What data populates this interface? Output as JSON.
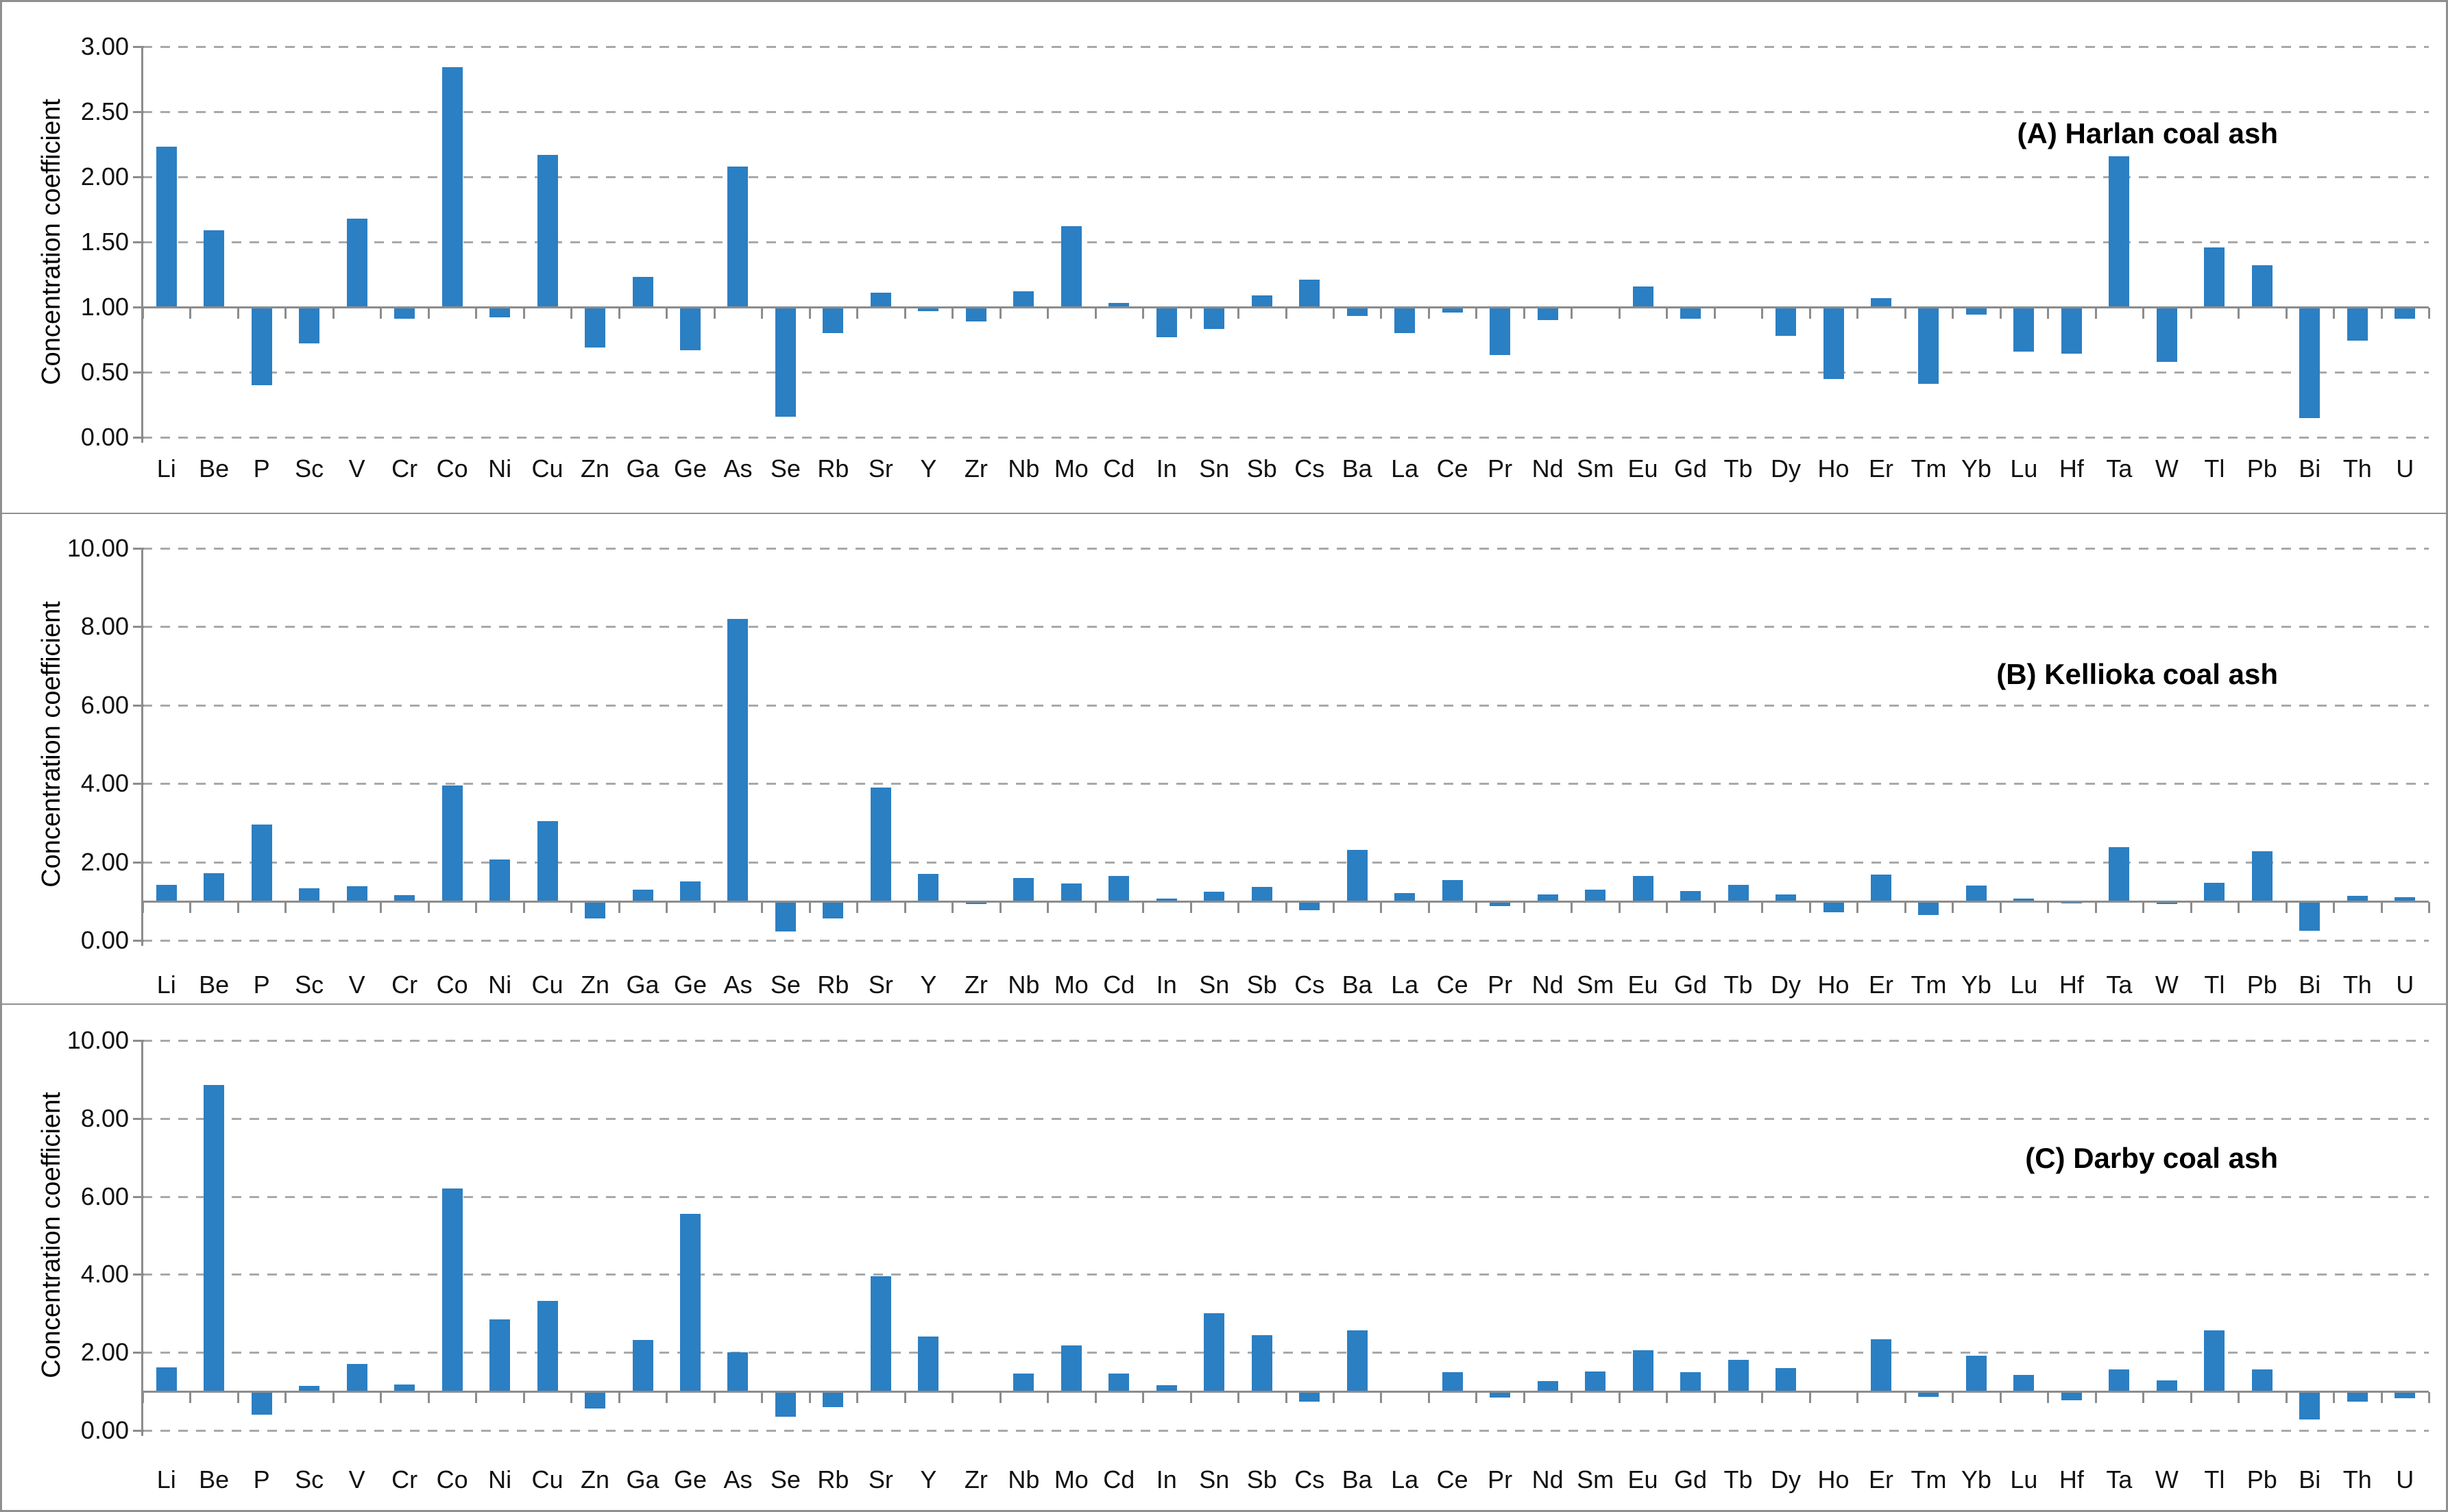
{
  "figure": {
    "bar_color": "#2b7fc3",
    "gridline_color": "#a9a9a9",
    "axis_color": "#8c8c8c",
    "background_color": "#ffffff"
  },
  "chart_data": [
    {
      "type": "bar",
      "panel": "A",
      "title": "(A) Harlan coal ash",
      "ylabel": "Concentration coefficient",
      "xlabel": "",
      "ylim": [
        0,
        3
      ],
      "ytick_step": 0.5,
      "ytick_labels": [
        "0.00",
        "0.50",
        "1.00",
        "1.50",
        "2.00",
        "2.50",
        "3.00"
      ],
      "bar_base": 1.0,
      "grid": true,
      "legend": "none",
      "categories": [
        "Li",
        "Be",
        "P",
        "Sc",
        "V",
        "Cr",
        "Co",
        "Ni",
        "Cu",
        "Zn",
        "Ga",
        "Ge",
        "As",
        "Se",
        "Rb",
        "Sr",
        "Y",
        "Zr",
        "Nb",
        "Mo",
        "Cd",
        "In",
        "Sn",
        "Sb",
        "Cs",
        "Ba",
        "La",
        "Ce",
        "Pr",
        "Nd",
        "Sm",
        "Eu",
        "Gd",
        "Tb",
        "Dy",
        "Ho",
        "Er",
        "Tm",
        "Yb",
        "Lu",
        "Hf",
        "Ta",
        "W",
        "Tl",
        "Pb",
        "Bi",
        "Th",
        "U"
      ],
      "values": [
        2.23,
        1.59,
        0.4,
        0.72,
        1.68,
        0.91,
        2.84,
        0.92,
        2.17,
        0.69,
        1.23,
        0.67,
        2.08,
        0.16,
        0.8,
        1.11,
        0.97,
        0.89,
        1.12,
        1.62,
        1.03,
        0.77,
        0.83,
        1.09,
        1.21,
        0.93,
        0.8,
        0.96,
        0.63,
        0.9,
        1.0,
        1.16,
        0.91,
        1.0,
        0.78,
        0.45,
        1.07,
        0.41,
        0.94,
        0.66,
        0.64,
        2.16,
        0.58,
        1.46,
        1.32,
        0.15,
        0.74,
        0.91
      ]
    },
    {
      "type": "bar",
      "panel": "B",
      "title": "(B) Kellioka coal ash",
      "ylabel": "Concentration coefficient",
      "xlabel": "",
      "ylim": [
        0,
        10
      ],
      "ytick_step": 2,
      "ytick_labels": [
        "0.00",
        "2.00",
        "4.00",
        "6.00",
        "8.00",
        "10.00"
      ],
      "bar_base": 1.0,
      "grid": true,
      "legend": "none",
      "categories": [
        "Li",
        "Be",
        "P",
        "Sc",
        "V",
        "Cr",
        "Co",
        "Ni",
        "Cu",
        "Zn",
        "Ga",
        "Ge",
        "As",
        "Se",
        "Rb",
        "Sr",
        "Y",
        "Zr",
        "Nb",
        "Mo",
        "Cd",
        "In",
        "Sn",
        "Sb",
        "Cs",
        "Ba",
        "La",
        "Ce",
        "Pr",
        "Nd",
        "Sm",
        "Eu",
        "Gd",
        "Tb",
        "Dy",
        "Ho",
        "Er",
        "Tm",
        "Yb",
        "Lu",
        "Hf",
        "Ta",
        "W",
        "Tl",
        "Pb",
        "Bi",
        "Th",
        "U"
      ],
      "values": [
        1.41,
        1.72,
        2.95,
        1.32,
        1.38,
        1.15,
        3.95,
        2.06,
        3.05,
        0.56,
        1.3,
        1.5,
        8.2,
        0.22,
        0.56,
        3.9,
        1.69,
        0.93,
        1.59,
        1.45,
        1.64,
        1.06,
        1.24,
        1.36,
        0.77,
        2.31,
        1.2,
        1.54,
        0.88,
        1.18,
        1.3,
        1.64,
        1.26,
        1.41,
        1.18,
        0.72,
        1.68,
        0.65,
        1.4,
        1.07,
        0.95,
        2.38,
        0.93,
        1.46,
        2.27,
        0.25,
        1.14,
        1.1
      ]
    },
    {
      "type": "bar",
      "panel": "C",
      "title": "(C) Darby coal ash",
      "ylabel": "Concentration coefficient",
      "xlabel": "",
      "ylim": [
        0,
        10
      ],
      "ytick_step": 2,
      "ytick_labels": [
        "0.00",
        "2.00",
        "4.00",
        "6.00",
        "8.00",
        "10.00"
      ],
      "bar_base": 1.0,
      "grid": true,
      "legend": "none",
      "categories": [
        "Li",
        "Be",
        "P",
        "Sc",
        "V",
        "Cr",
        "Co",
        "Ni",
        "Cu",
        "Zn",
        "Ga",
        "Ge",
        "As",
        "Se",
        "Rb",
        "Sr",
        "Y",
        "Zr",
        "Nb",
        "Mo",
        "Cd",
        "In",
        "Sn",
        "Sb",
        "Cs",
        "Ba",
        "La",
        "Ce",
        "Pr",
        "Nd",
        "Sm",
        "Eu",
        "Gd",
        "Tb",
        "Dy",
        "Ho",
        "Er",
        "Tm",
        "Yb",
        "Lu",
        "Hf",
        "Ta",
        "W",
        "Tl",
        "Pb",
        "Bi",
        "Th",
        "U"
      ],
      "values": [
        1.61,
        8.85,
        0.4,
        1.15,
        1.7,
        1.17,
        6.2,
        2.85,
        3.32,
        0.56,
        2.32,
        5.55,
        2.0,
        0.35,
        0.59,
        3.95,
        2.4,
        1.0,
        1.46,
        2.18,
        1.46,
        1.16,
        3.0,
        2.44,
        0.74,
        2.57,
        1.0,
        1.5,
        0.85,
        1.26,
        1.52,
        2.06,
        1.5,
        1.81,
        1.6,
        1.0,
        2.34,
        0.86,
        1.92,
        1.42,
        0.77,
        1.56,
        1.29,
        2.57,
        1.56,
        0.28,
        0.73,
        0.82
      ]
    }
  ]
}
